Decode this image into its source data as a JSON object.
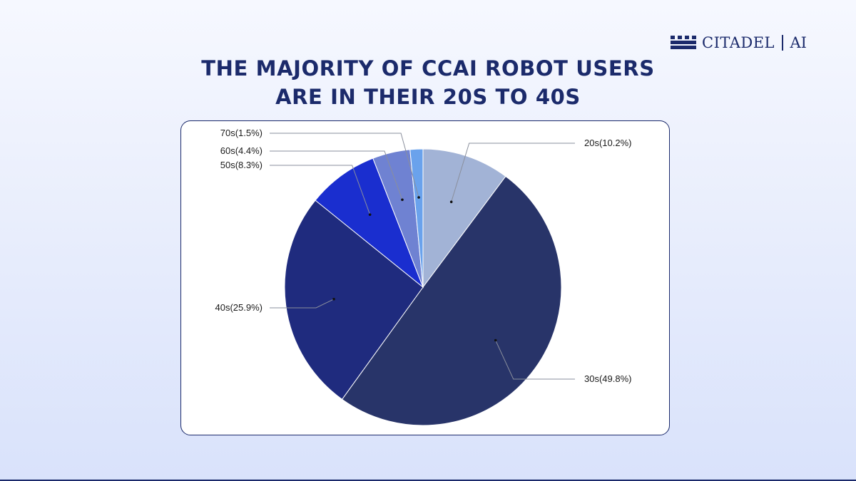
{
  "brand": {
    "name": "CITADEL",
    "suffix": "AI",
    "logo_icon": "castle-battlement-icon",
    "color": "#1b2a6b"
  },
  "title_lines": [
    "THE MAJORITY OF CCAI ROBOT USERS",
    "ARE IN THEIR 20S TO 40S"
  ],
  "chart_data": {
    "type": "pie",
    "title": "THE MAJORITY OF CCAI ROBOT USERS ARE IN THEIR 20S TO 40S",
    "slices": [
      {
        "label": "20s(10.2%)",
        "category": "20s",
        "value": 10.2,
        "color": "#a2b3d6"
      },
      {
        "label": "30s(49.8%)",
        "category": "30s",
        "value": 49.8,
        "color": "#283469"
      },
      {
        "label": "40s(25.9%)",
        "category": "40s",
        "value": 25.9,
        "color": "#1f2b7e"
      },
      {
        "label": "50s(8.3%)",
        "category": "50s",
        "value": 8.3,
        "color": "#1a2ecf"
      },
      {
        "label": "60s(4.4%)",
        "category": "60s",
        "value": 4.4,
        "color": "#6f82d2"
      },
      {
        "label": "70s(1.5%)",
        "category": "70s",
        "value": 1.5,
        "color": "#6aa2ec"
      }
    ],
    "start_angle": "12 o'clock",
    "direction": "clockwise",
    "labels": "outside with leader lines"
  }
}
